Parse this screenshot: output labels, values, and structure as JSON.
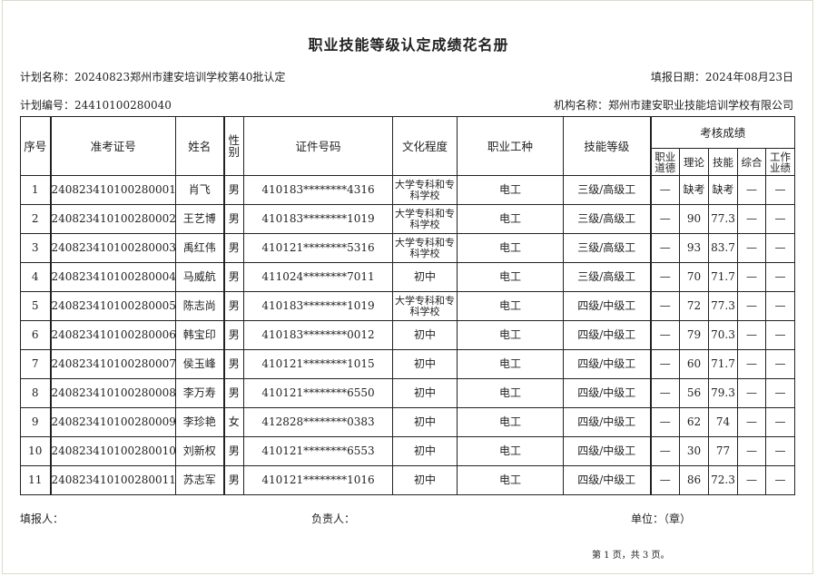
{
  "title": "职业技能等级认定成绩花名册",
  "plan_name": "计划名称：20240823郑州市建安培训学校第40批认定",
  "fill_date": "填报日期：2024年08月23日",
  "plan_no": "计划编号：24410100280040",
  "org_name": "机构名称：郑州市建安职业技能培训学校有限公司",
  "headers": {
    "seq": "序号",
    "ticket": "准考证号",
    "name": "姓名",
    "gender": "性别",
    "id": "证件号码",
    "education": "文化程度",
    "occupation": "职业工种",
    "level": "技能等级",
    "scores": "考核成绩",
    "ethics": "职业道德",
    "theory": "理论",
    "skill": "技能",
    "overall": "综合",
    "work": "工作业绩"
  },
  "rows": [
    {
      "seq": "1",
      "ticket": "240823410100280001",
      "name": "肖飞",
      "gender": "男",
      "id": "410183********4316",
      "education": "大学专科和专科学校",
      "occupation": "电工",
      "level": "三级/高级工",
      "ethics": "—",
      "theory": "缺考",
      "skill": "缺考",
      "overall": "—",
      "work": "—"
    },
    {
      "seq": "2",
      "ticket": "240823410100280002",
      "name": "王艺博",
      "gender": "男",
      "id": "410183********1019",
      "education": "大学专科和专科学校",
      "occupation": "电工",
      "level": "三级/高级工",
      "ethics": "—",
      "theory": "90",
      "skill": "77.3",
      "overall": "—",
      "work": "—"
    },
    {
      "seq": "3",
      "ticket": "240823410100280003",
      "name": "禹红伟",
      "gender": "男",
      "id": "410121********5316",
      "education": "大学专科和专科学校",
      "occupation": "电工",
      "level": "三级/高级工",
      "ethics": "—",
      "theory": "93",
      "skill": "83.7",
      "overall": "—",
      "work": "—"
    },
    {
      "seq": "4",
      "ticket": "240823410100280004",
      "name": "马威航",
      "gender": "男",
      "id": "411024********7011",
      "education": "初中",
      "occupation": "电工",
      "level": "三级/高级工",
      "ethics": "—",
      "theory": "70",
      "skill": "71.7",
      "overall": "—",
      "work": "—"
    },
    {
      "seq": "5",
      "ticket": "240823410100280005",
      "name": "陈志尚",
      "gender": "男",
      "id": "410183********1019",
      "education": "大学专科和专科学校",
      "occupation": "电工",
      "level": "四级/中级工",
      "ethics": "—",
      "theory": "72",
      "skill": "77.3",
      "overall": "—",
      "work": "—"
    },
    {
      "seq": "6",
      "ticket": "240823410100280006",
      "name": "韩宝印",
      "gender": "男",
      "id": "410183********0012",
      "education": "初中",
      "occupation": "电工",
      "level": "四级/中级工",
      "ethics": "—",
      "theory": "79",
      "skill": "70.3",
      "overall": "—",
      "work": "—"
    },
    {
      "seq": "7",
      "ticket": "240823410100280007",
      "name": "侯玉峰",
      "gender": "男",
      "id": "410121********1015",
      "education": "初中",
      "occupation": "电工",
      "level": "四级/中级工",
      "ethics": "—",
      "theory": "60",
      "skill": "71.7",
      "overall": "—",
      "work": "—"
    },
    {
      "seq": "8",
      "ticket": "240823410100280008",
      "name": "李万寿",
      "gender": "男",
      "id": "410121********6550",
      "education": "初中",
      "occupation": "电工",
      "level": "四级/中级工",
      "ethics": "—",
      "theory": "56",
      "skill": "79.3",
      "overall": "—",
      "work": "—"
    },
    {
      "seq": "9",
      "ticket": "240823410100280009",
      "name": "李珍艳",
      "gender": "女",
      "id": "412828********0383",
      "education": "初中",
      "occupation": "电工",
      "level": "四级/中级工",
      "ethics": "—",
      "theory": "62",
      "skill": "74",
      "overall": "—",
      "work": "—"
    },
    {
      "seq": "10",
      "ticket": "240823410100280010",
      "name": "刘新权",
      "gender": "男",
      "id": "410121********6553",
      "education": "初中",
      "occupation": "电工",
      "level": "四级/中级工",
      "ethics": "—",
      "theory": "30",
      "skill": "77",
      "overall": "—",
      "work": "—"
    },
    {
      "seq": "11",
      "ticket": "240823410100280011",
      "name": "苏志军",
      "gender": "男",
      "id": "410121********1016",
      "education": "初中",
      "occupation": "电工",
      "level": "四级/中级工",
      "ethics": "—",
      "theory": "86",
      "skill": "72.3",
      "overall": "—",
      "work": "—"
    }
  ],
  "footer": {
    "filler": "填报人：",
    "responsible": "负责人：",
    "unit": "单位：（章）",
    "page": "第 1 页，共 3 页。"
  }
}
